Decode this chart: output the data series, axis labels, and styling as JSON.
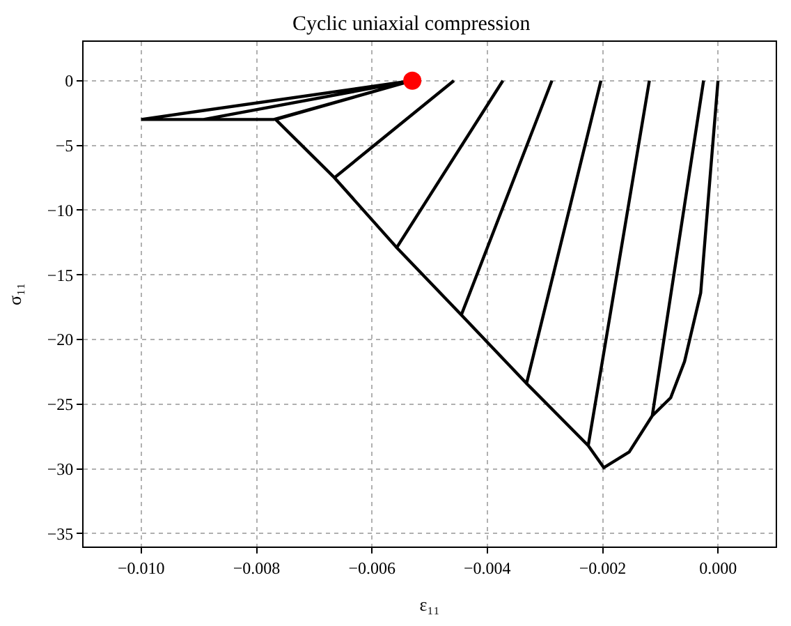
{
  "chart_data": {
    "type": "line",
    "title": "Cyclic uniaxial compression",
    "xlabel": "ε₁₁",
    "ylabel": "σ₁₁",
    "xlim": [
      -0.011,
      0.001
    ],
    "ylim": [
      -36,
      3
    ],
    "xticks": [
      {
        "value": -0.01,
        "label": "−0.010"
      },
      {
        "value": -0.008,
        "label": "−0.008"
      },
      {
        "value": -0.006,
        "label": "−0.006"
      },
      {
        "value": -0.004,
        "label": "−0.004"
      },
      {
        "value": -0.002,
        "label": "−0.002"
      },
      {
        "value": 0,
        "label": "0.000"
      }
    ],
    "yticks": [
      {
        "value": -35,
        "label": "−35"
      },
      {
        "value": -30,
        "label": "−30"
      },
      {
        "value": -25,
        "label": "−25"
      },
      {
        "value": -20,
        "label": "−20"
      },
      {
        "value": -15,
        "label": "−15"
      },
      {
        "value": -10,
        "label": "−10"
      },
      {
        "value": -5,
        "label": "−5"
      },
      0
    ],
    "grid": true,
    "series": [
      {
        "color": "#000000",
        "marker": "none",
        "line_style": "solid",
        "x": [
          0,
          -0.00014,
          -0.0003,
          -0.00058,
          -0.00082,
          -0.00114,
          -0.00025,
          -0.00114,
          -0.00154,
          -0.00198,
          -0.00225,
          -0.00119,
          -0.00225,
          -0.00332,
          -0.00203,
          -0.00332,
          -0.00445,
          -0.00288,
          -0.00445,
          -0.00557,
          -0.00373,
          -0.00557,
          -0.00665,
          -0.00458,
          -0.00665,
          -0.00767,
          -0.0053,
          -0.0077,
          -0.00892,
          -0.0053,
          -0.00892,
          -0.01,
          -0.0053
        ],
        "values": [
          0,
          -7.6,
          -16.4,
          -21.7,
          -24.5,
          -25.9,
          0,
          -25.9,
          -28.7,
          -29.9,
          -28.2,
          0,
          -28.2,
          -23.4,
          0,
          -23.4,
          -18.1,
          0,
          -18.1,
          -12.9,
          0,
          -12.9,
          -7.5,
          0,
          -7.5,
          -3.0,
          0,
          -3.0,
          -3.0,
          0,
          -3.0,
          -3.0,
          0
        ]
      },
      {
        "type": "scatter",
        "color": "#ff0000",
        "marker": "circle",
        "x": [
          -0.0053
        ],
        "values": [
          0
        ]
      }
    ]
  }
}
